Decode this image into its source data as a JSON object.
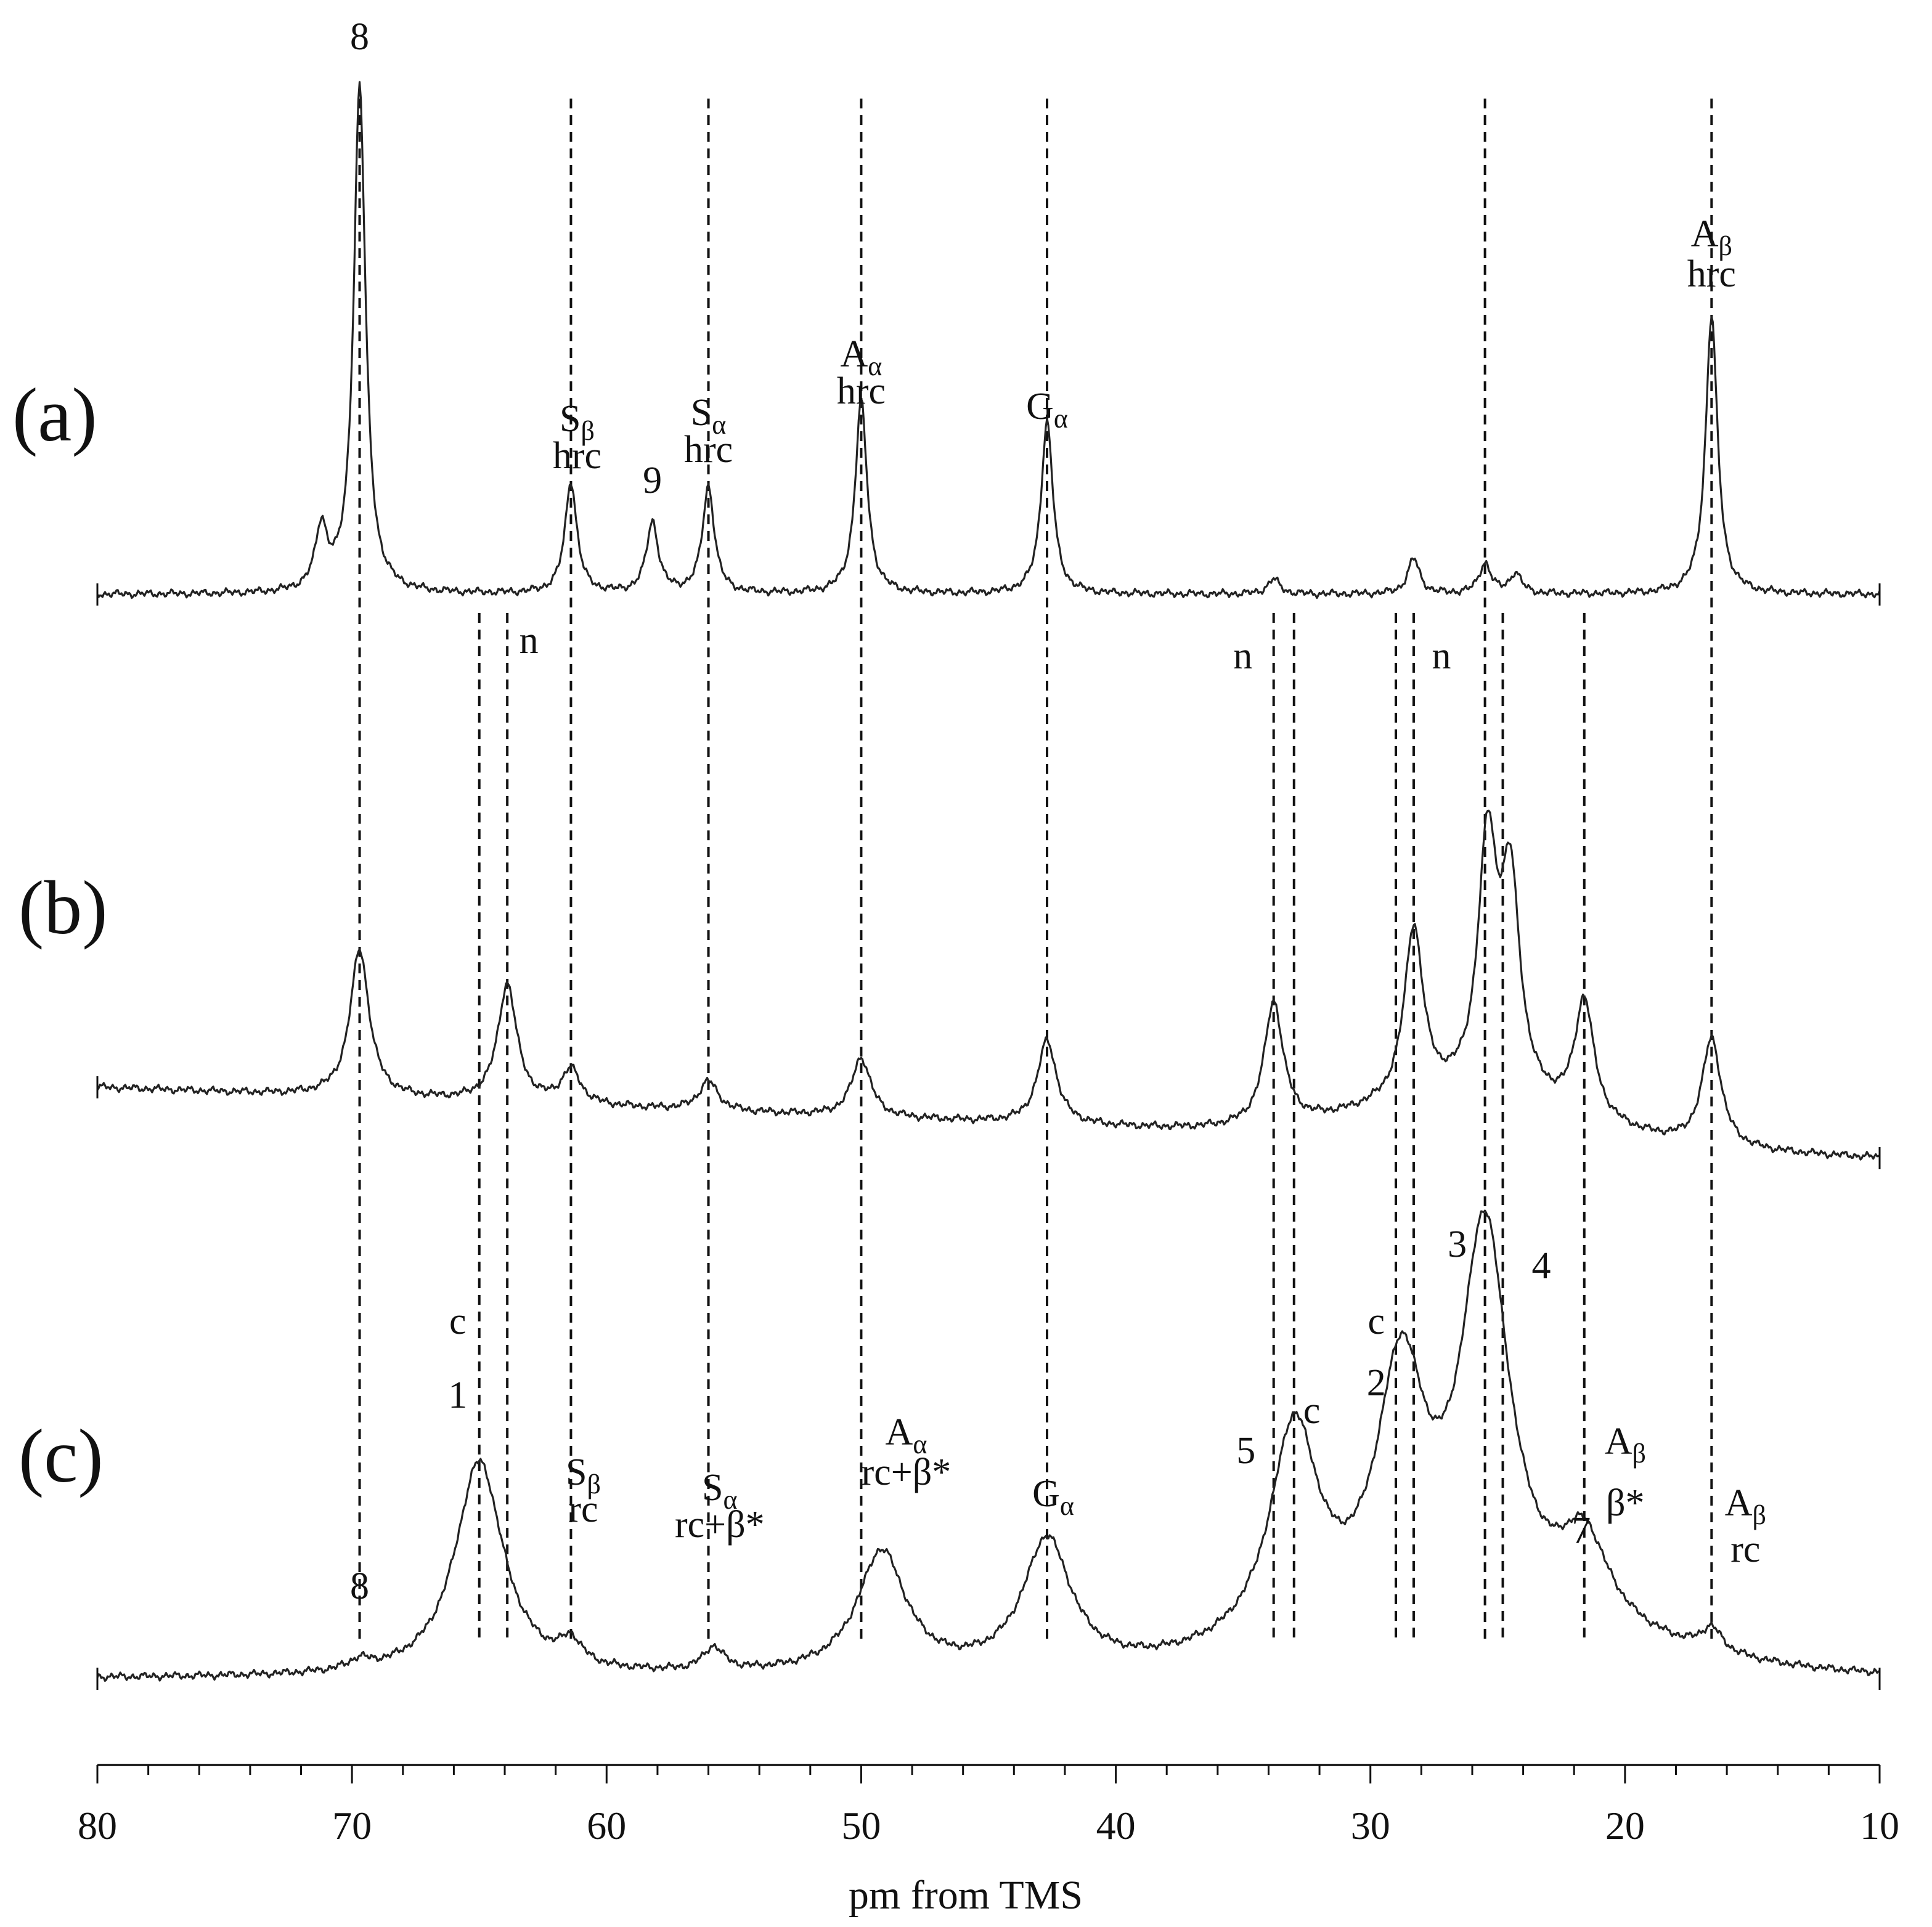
{
  "chart_data": {
    "type": "line",
    "xlabel": "pm from TMS",
    "xlim": [
      80,
      10
    ],
    "x_reversed": true,
    "xticks": [
      80,
      70,
      60,
      50,
      40,
      30,
      20,
      10
    ],
    "grid": false,
    "legend": "none",
    "panels": [
      {
        "label": "(a)",
        "peaks": [
          {
            "ppm": 71.2,
            "height": 0.12
          },
          {
            "ppm": 69.7,
            "height": 1.0
          },
          {
            "ppm": 61.4,
            "height": 0.22
          },
          {
            "ppm": 58.2,
            "height": 0.14
          },
          {
            "ppm": 56.0,
            "height": 0.21
          },
          {
            "ppm": 50.0,
            "height": 0.38
          },
          {
            "ppm": 42.7,
            "height": 0.34
          },
          {
            "ppm": 33.8,
            "height": 0.03
          },
          {
            "ppm": 28.3,
            "height": 0.07
          },
          {
            "ppm": 25.5,
            "height": 0.06
          },
          {
            "ppm": 24.3,
            "height": 0.04
          },
          {
            "ppm": 16.6,
            "height": 0.55
          }
        ],
        "annotations": [
          {
            "ppm": 69.7,
            "lines": [
              {
                "main": "8"
              }
            ]
          },
          {
            "ppm": 61.4,
            "lines": [
              {
                "main": "S",
                "sub": "β"
              },
              {
                "main": "hrc"
              }
            ]
          },
          {
            "ppm": 58.2,
            "lines": [
              {
                "main": "9"
              }
            ]
          },
          {
            "ppm": 56.0,
            "lines": [
              {
                "main": "S",
                "sub": "α"
              },
              {
                "main": "hrc"
              }
            ]
          },
          {
            "ppm": 50.0,
            "lines": [
              {
                "main": "A",
                "sub": "α"
              },
              {
                "main": "hrc"
              }
            ]
          },
          {
            "ppm": 42.7,
            "lines": [
              {
                "main": "G",
                "sub": "α"
              }
            ]
          },
          {
            "ppm": 16.6,
            "lines": [
              {
                "main": "A",
                "sub": "β"
              },
              {
                "main": "hrc"
              }
            ]
          }
        ]
      },
      {
        "label": "(b)",
        "peaks": [
          {
            "ppm": 69.7,
            "height": 0.3
          },
          {
            "ppm": 63.9,
            "height": 0.24
          },
          {
            "ppm": 61.4,
            "height": 0.07
          },
          {
            "ppm": 56.0,
            "height": 0.06
          },
          {
            "ppm": 50.0,
            "height": 0.12
          },
          {
            "ppm": 42.7,
            "height": 0.17
          },
          {
            "ppm": 33.8,
            "height": 0.25
          },
          {
            "ppm": 28.3,
            "height": 0.35
          },
          {
            "ppm": 25.4,
            "height": 0.5
          },
          {
            "ppm": 24.5,
            "height": 0.42
          },
          {
            "ppm": 21.6,
            "height": 0.24
          },
          {
            "ppm": 16.6,
            "height": 0.22
          }
        ],
        "annotations": [
          {
            "ppm": 63.9,
            "lines": [
              {
                "main": "n"
              }
            ]
          },
          {
            "ppm": 33.8,
            "lines": [
              {
                "main": "n"
              }
            ]
          },
          {
            "ppm": 28.3,
            "lines": [
              {
                "main": "n"
              }
            ]
          }
        ]
      },
      {
        "label": "(c)",
        "peaks": [
          {
            "ppm": 69.7,
            "height": 0.02
          },
          {
            "ppm": 65.0,
            "height": 0.46
          },
          {
            "ppm": 61.4,
            "height": 0.05
          },
          {
            "ppm": 55.8,
            "height": 0.05
          },
          {
            "ppm": 49.2,
            "height": 0.26
          },
          {
            "ppm": 42.7,
            "height": 0.28
          },
          {
            "ppm": 33.0,
            "height": 0.45
          },
          {
            "ppm": 28.8,
            "height": 0.52
          },
          {
            "ppm": 25.5,
            "height": 0.82
          },
          {
            "ppm": 21.6,
            "height": 0.18
          },
          {
            "ppm": 16.6,
            "height": 0.05
          }
        ],
        "annotations": [
          {
            "ppm": 69.7,
            "lines": [
              {
                "main": "8"
              }
            ]
          },
          {
            "ppm": 65.0,
            "lines": [
              {
                "main": "c"
              },
              {
                "main": "1"
              }
            ]
          },
          {
            "ppm": 61.4,
            "lines": [
              {
                "main": "S",
                "sub": "β"
              },
              {
                "main": "rc"
              }
            ]
          },
          {
            "ppm": 55.8,
            "lines": [
              {
                "main": "S",
                "sub": "α"
              },
              {
                "main": "rc+β*"
              }
            ]
          },
          {
            "ppm": 49.2,
            "lines": [
              {
                "main": "A",
                "sub": "α"
              },
              {
                "main": "rc+β*"
              }
            ]
          },
          {
            "ppm": 42.7,
            "lines": [
              {
                "main": "G",
                "sub": "α"
              }
            ]
          },
          {
            "ppm": 33.8,
            "lines": [
              {
                "main": "5"
              }
            ]
          },
          {
            "ppm": 32.3,
            "lines": [
              {
                "main": "c"
              }
            ]
          },
          {
            "ppm": 28.8,
            "lines": [
              {
                "main": "c"
              },
              {
                "main": "2"
              }
            ]
          },
          {
            "ppm": 25.5,
            "lines": [
              {
                "main": "3"
              }
            ]
          },
          {
            "ppm": 24.5,
            "lines": [
              {
                "main": "4"
              }
            ]
          },
          {
            "ppm": 21.6,
            "lines": [
              {
                "main": "7"
              }
            ]
          },
          {
            "ppm": 18.9,
            "lines": [
              {
                "main": "A",
                "sub": "β"
              },
              {
                "main": "β*"
              }
            ]
          },
          {
            "ppm": 16.6,
            "lines": [
              {
                "main": "A",
                "sub": "β"
              },
              {
                "main": "rc"
              }
            ]
          }
        ]
      }
    ],
    "reference_lines_ppm": [
      69.7,
      65.0,
      63.9,
      61.4,
      56.0,
      50.0,
      42.7,
      33.8,
      33.0,
      29.0,
      28.3,
      25.5,
      24.8,
      21.6,
      16.6
    ]
  }
}
